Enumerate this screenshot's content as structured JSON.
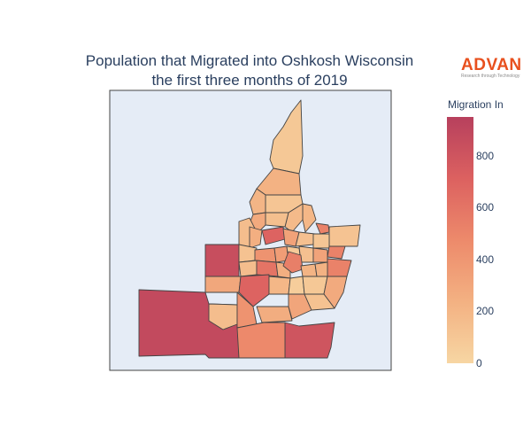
{
  "title": {
    "line1": "Population that Migrated into Oshkosh Wisconsin",
    "line2": "the first three months of 2019"
  },
  "logo": {
    "name": "ADVAN",
    "tagline": "Research through Technology"
  },
  "colorbar": {
    "title": "Migration In",
    "min": 0,
    "max": 950,
    "ticks": [
      {
        "value": 0,
        "label": "0"
      },
      {
        "value": 200,
        "label": "200"
      },
      {
        "value": 400,
        "label": "400"
      },
      {
        "value": 600,
        "label": "600"
      },
      {
        "value": 800,
        "label": "800"
      }
    ],
    "colorscale": [
      "#f7d6a3",
      "#f3b182",
      "#ed8a6b",
      "#dc6160",
      "#b7405d"
    ]
  },
  "map": {
    "background": "#e5ecf6",
    "border_color": "#444444",
    "regions": [
      {
        "value": 90
      },
      {
        "value": 230
      },
      {
        "value": 110
      },
      {
        "value": 210
      },
      {
        "value": 200
      },
      {
        "value": 180
      },
      {
        "value": 150
      },
      {
        "value": 280
      },
      {
        "value": 520
      },
      {
        "value": 120
      },
      {
        "value": 160
      },
      {
        "value": 250
      },
      {
        "value": 700
      },
      {
        "value": 330
      },
      {
        "value": 140
      },
      {
        "value": 100
      },
      {
        "value": 520
      },
      {
        "value": 850
      },
      {
        "value": 130
      },
      {
        "value": 420
      },
      {
        "value": 360
      },
      {
        "value": 80
      },
      {
        "value": 140
      },
      {
        "value": 320
      },
      {
        "value": 160
      },
      {
        "value": 600
      },
      {
        "value": 250
      },
      {
        "value": 540
      },
      {
        "value": 220
      },
      {
        "value": 520
      },
      {
        "value": 230
      },
      {
        "value": 300
      },
      {
        "value": 700
      },
      {
        "value": 200
      },
      {
        "value": 60
      },
      {
        "value": 90
      },
      {
        "value": 880
      },
      {
        "value": 280
      },
      {
        "value": 800
      },
      {
        "value": 160
      },
      {
        "value": 420
      },
      {
        "value": 260
      },
      {
        "value": 310
      },
      {
        "value": 130
      },
      {
        "value": 480
      }
    ]
  }
}
